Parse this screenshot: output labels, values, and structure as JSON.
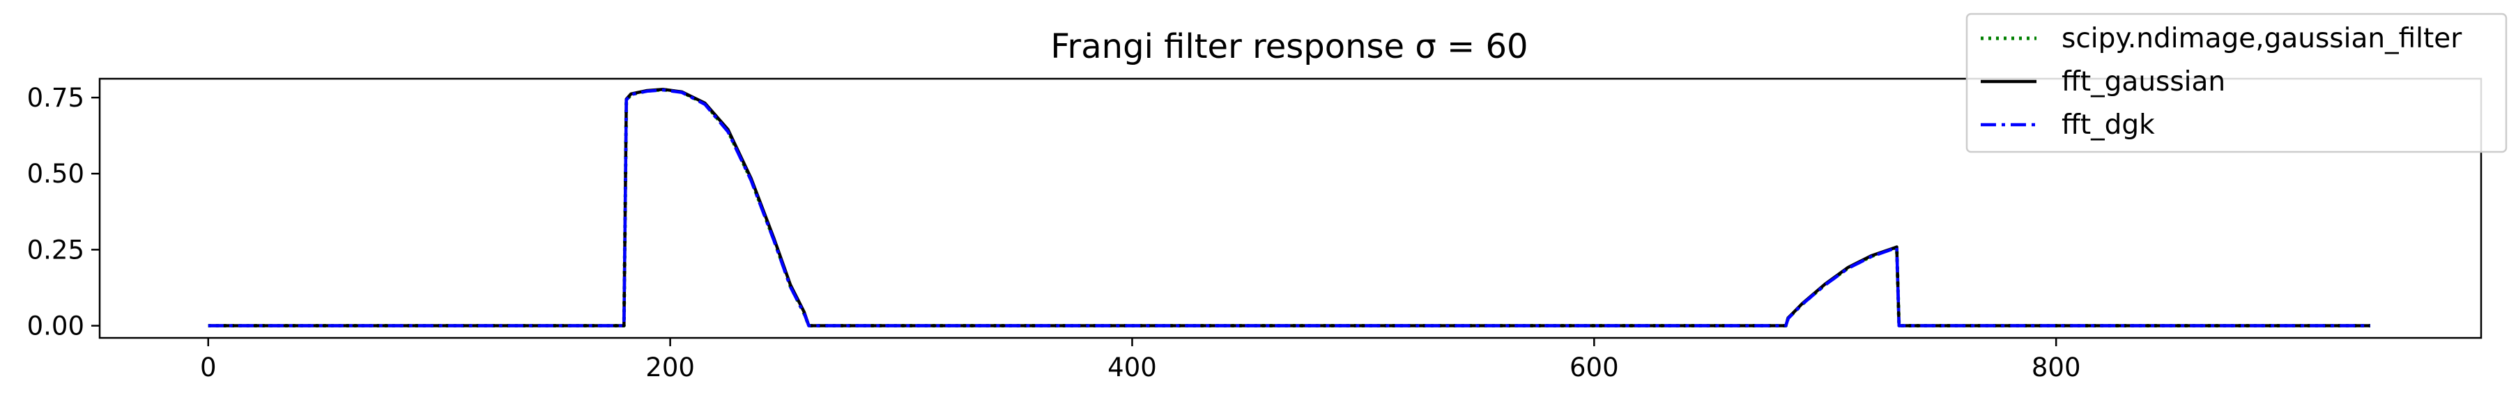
{
  "chart_data": {
    "type": "line",
    "title": "Frangi filter response",
    "title_math": "σ = 60",
    "xlabel": "",
    "ylabel": "",
    "xlim": [
      -47,
      984
    ],
    "ylim": [
      -0.04,
      0.812
    ],
    "x_ticks": [
      0,
      200,
      400,
      600,
      800
    ],
    "x_tick_labels": [
      "0",
      "200",
      "400",
      "600",
      "800"
    ],
    "y_ticks": [
      0.0,
      0.25,
      0.5,
      0.75
    ],
    "y_tick_labels": [
      "0.00",
      "0.25",
      "0.50",
      "0.75"
    ],
    "grid": false,
    "legend_position": "top-right",
    "series": [
      {
        "name": "scipy.ndimage,gaussian_filter",
        "color": "#008000",
        "linestyle": "dotted",
        "x": [
          0,
          180,
          181,
          183,
          190,
          197,
          205,
          215,
          225,
          235,
          245,
          252,
          258,
          259,
          260,
          400,
          600,
          683,
          684,
          686,
          690,
          700,
          710,
          720,
          730,
          731,
          732,
          800,
          936
        ],
        "y": [
          0.0,
          0.0,
          0.74,
          0.76,
          0.772,
          0.776,
          0.768,
          0.73,
          0.64,
          0.48,
          0.28,
          0.13,
          0.04,
          0.02,
          0.0,
          0.0,
          0.0,
          0.0,
          0.025,
          0.04,
          0.07,
          0.135,
          0.19,
          0.228,
          0.255,
          0.258,
          0.0,
          0.0,
          0.0
        ]
      },
      {
        "name": "fft_gaussian",
        "color": "#000000",
        "linestyle": "solid",
        "x": [
          0,
          180,
          181,
          183,
          190,
          197,
          205,
          215,
          225,
          235,
          245,
          252,
          258,
          259,
          260,
          400,
          600,
          683,
          684,
          686,
          690,
          700,
          710,
          720,
          730,
          731,
          732,
          800,
          936
        ],
        "y": [
          0.0,
          0.0,
          0.745,
          0.762,
          0.773,
          0.777,
          0.769,
          0.732,
          0.645,
          0.485,
          0.285,
          0.135,
          0.045,
          0.022,
          0.0,
          0.0,
          0.0,
          0.0,
          0.026,
          0.041,
          0.072,
          0.137,
          0.192,
          0.23,
          0.256,
          0.259,
          0.0,
          0.0,
          0.0
        ]
      },
      {
        "name": "fft_dgk",
        "color": "#0000ff",
        "linestyle": "dashdot",
        "x": [
          0,
          180,
          181,
          183,
          190,
          197,
          205,
          215,
          225,
          235,
          245,
          252,
          258,
          259,
          260,
          400,
          600,
          683,
          684,
          686,
          690,
          700,
          710,
          720,
          730,
          731,
          732,
          800,
          936
        ],
        "y": [
          0.0,
          0.0,
          0.742,
          0.76,
          0.771,
          0.775,
          0.767,
          0.728,
          0.638,
          0.478,
          0.278,
          0.128,
          0.04,
          0.02,
          0.0,
          0.0,
          0.0,
          0.0,
          0.024,
          0.039,
          0.07,
          0.134,
          0.189,
          0.227,
          0.254,
          0.257,
          0.0,
          0.0,
          0.0
        ]
      }
    ]
  }
}
